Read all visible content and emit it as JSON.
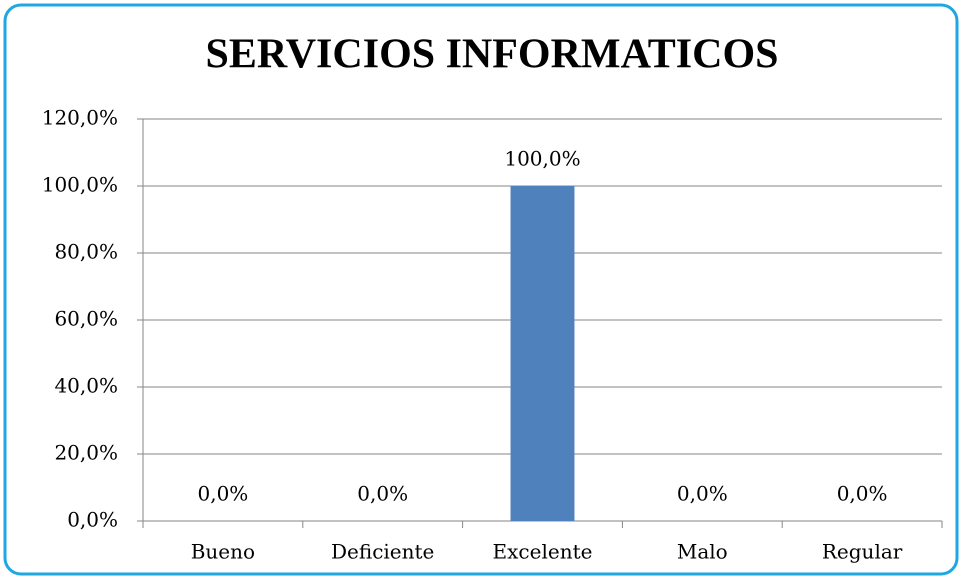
{
  "chart_data": {
    "type": "bar",
    "title": "SERVICIOS INFORMATICOS",
    "categories": [
      "Bueno",
      "Deficiente",
      "Excelente",
      "Malo",
      "Regular"
    ],
    "values": [
      0,
      0,
      100,
      0,
      0
    ],
    "value_labels": [
      "0,0%",
      "0,0%",
      "100,0%",
      "0,0%",
      "0,0%"
    ],
    "color": "#4f81bd",
    "ylim": [
      0,
      120
    ],
    "yticks": [
      {
        "value": 0,
        "label": "0,0%"
      },
      {
        "value": 20,
        "label": "20,0%"
      },
      {
        "value": 40,
        "label": "40,0%"
      },
      {
        "value": 60,
        "label": "60,0%"
      },
      {
        "value": 80,
        "label": "80,0%"
      },
      {
        "value": 100,
        "label": "100,0%"
      },
      {
        "value": 120,
        "label": "120,0%"
      }
    ],
    "grid": true
  }
}
